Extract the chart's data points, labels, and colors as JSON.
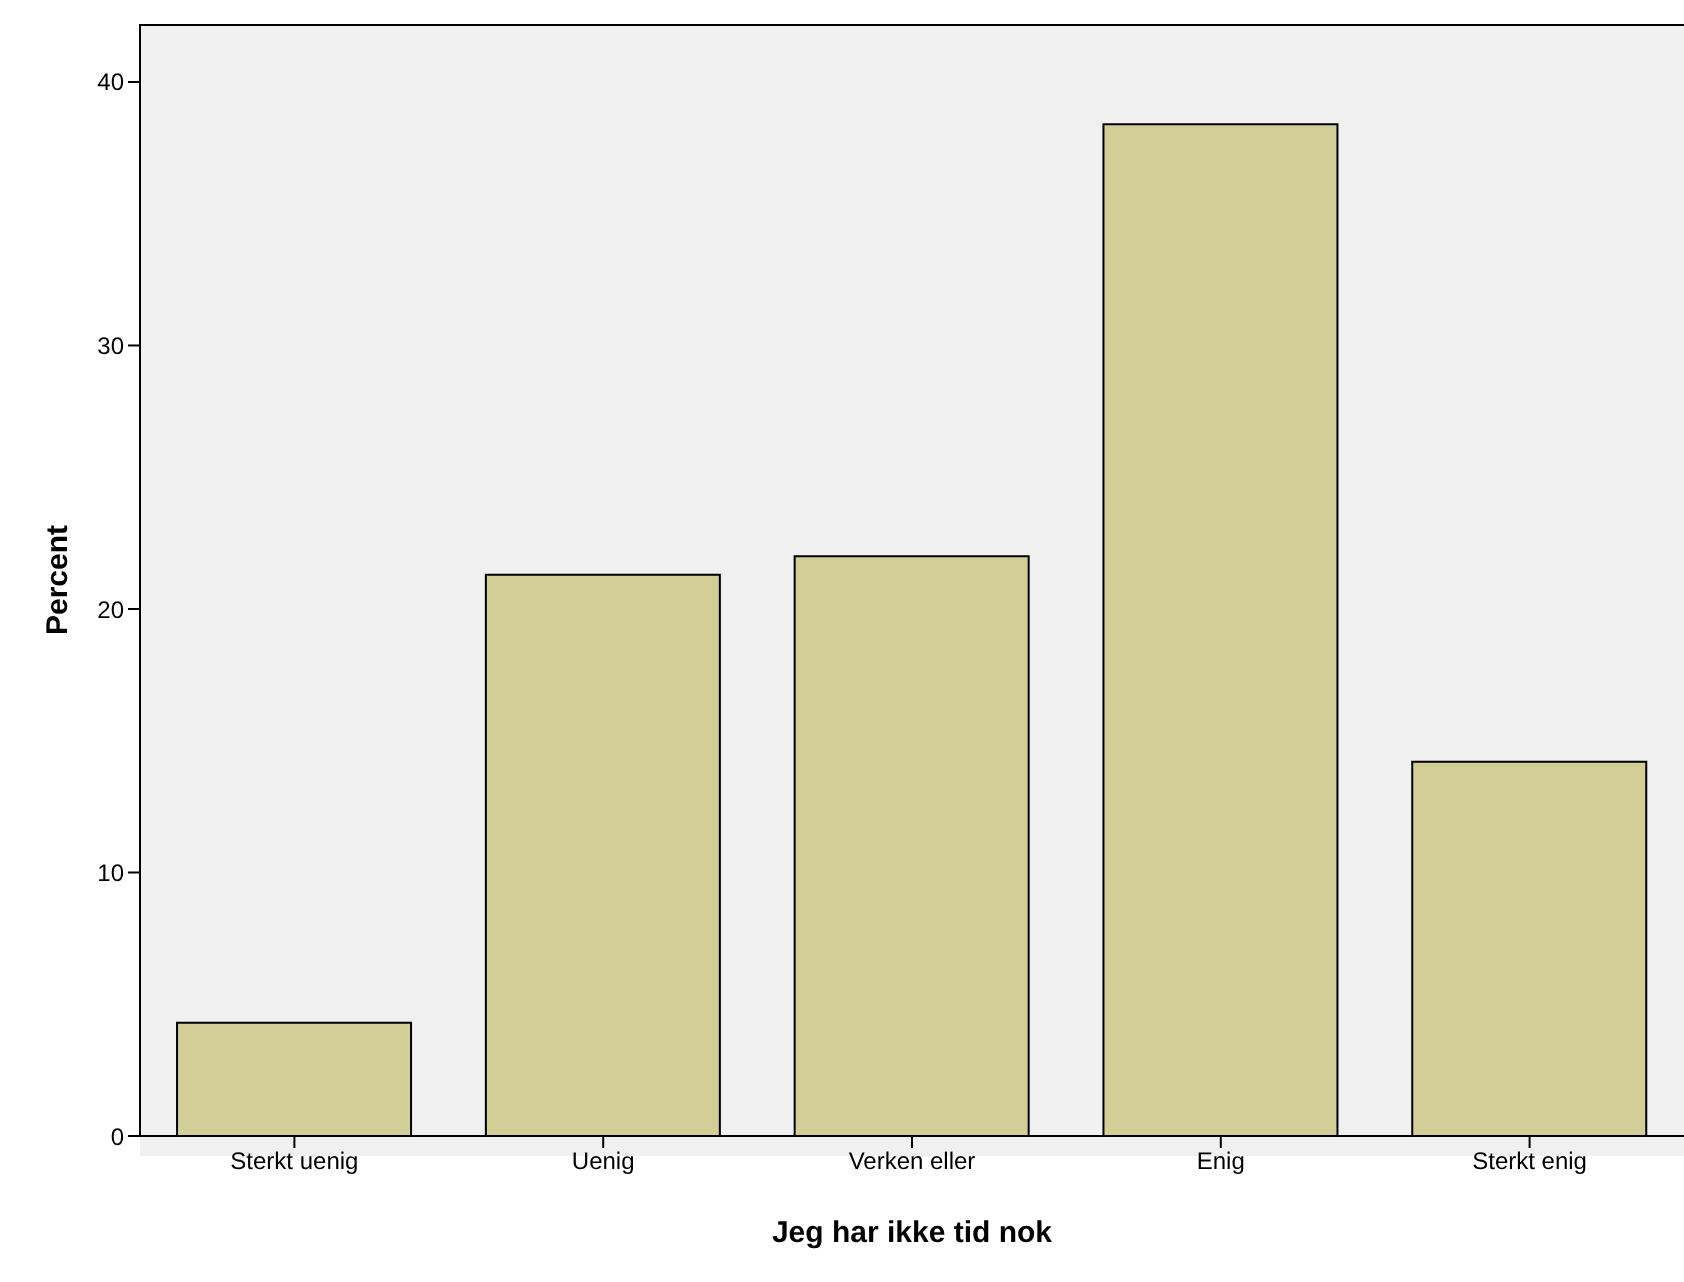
{
  "chart_data": {
    "type": "bar",
    "xlabel": "Jeg har ikke tid nok",
    "ylabel": "Percent",
    "categories": [
      "Sterkt uenig",
      "Uenig",
      "Verken eller",
      "Enig",
      "Sterkt enig"
    ],
    "values": [
      4.3,
      21.3,
      22.0,
      38.4,
      14.2
    ],
    "color": "#d3ce98",
    "ylim": [
      0,
      42.2
    ],
    "yticks": [
      0,
      10,
      20,
      30,
      40
    ],
    "grid": false,
    "legend": false
  }
}
